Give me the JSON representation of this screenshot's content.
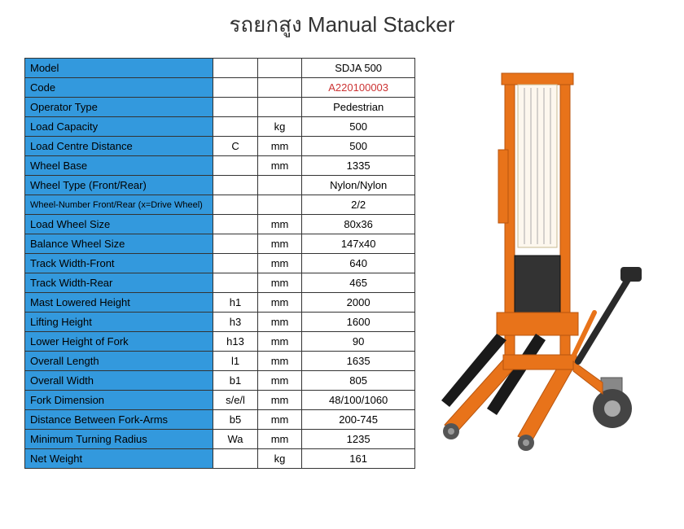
{
  "title": "รถยกสูง Manual Stacker",
  "table": {
    "label_bg": "#3399dd",
    "border_color": "#333333",
    "highlight_color": "#cc3333",
    "rows": [
      {
        "label": "Model",
        "symbol": "",
        "unit": "",
        "value": "SDJA 500",
        "highlight": false
      },
      {
        "label": "Code",
        "symbol": "",
        "unit": "",
        "value": "A220100003",
        "highlight": true
      },
      {
        "label": "Operator Type",
        "symbol": "",
        "unit": "",
        "value": "Pedestrian",
        "highlight": false
      },
      {
        "label": "Load Capacity",
        "symbol": "",
        "unit": "kg",
        "value": "500",
        "highlight": false
      },
      {
        "label": "Load Centre Distance",
        "symbol": "C",
        "unit": "mm",
        "value": "500",
        "highlight": false
      },
      {
        "label": "Wheel Base",
        "symbol": "",
        "unit": "mm",
        "value": "1335",
        "highlight": false
      },
      {
        "label": "Wheel Type (Front/Rear)",
        "symbol": "",
        "unit": "",
        "value": "Nylon/Nylon",
        "highlight": false
      },
      {
        "label": "Wheel-Number Front/Rear (x=Drive Wheel)",
        "symbol": "",
        "unit": "",
        "value": "2/2",
        "highlight": false,
        "small": true
      },
      {
        "label": "Load Wheel Size",
        "symbol": "",
        "unit": "mm",
        "value": "80x36",
        "highlight": false
      },
      {
        "label": "Balance Wheel Size",
        "symbol": "",
        "unit": "mm",
        "value": "147x40",
        "highlight": false
      },
      {
        "label": "Track Width-Front",
        "symbol": "",
        "unit": "mm",
        "value": "640",
        "highlight": false
      },
      {
        "label": "Track Width-Rear",
        "symbol": "",
        "unit": "mm",
        "value": "465",
        "highlight": false
      },
      {
        "label": "Mast Lowered Height",
        "symbol": "h1",
        "unit": "mm",
        "value": "2000",
        "highlight": false
      },
      {
        "label": "Lifting Height",
        "symbol": "h3",
        "unit": "mm",
        "value": "1600",
        "highlight": false
      },
      {
        "label": "Lower Height of Fork",
        "symbol": "h13",
        "unit": "mm",
        "value": "90",
        "highlight": false
      },
      {
        "label": "Overall Length",
        "symbol": "l1",
        "unit": "mm",
        "value": "1635",
        "highlight": false
      },
      {
        "label": "Overall Width",
        "symbol": "b1",
        "unit": "mm",
        "value": "805",
        "highlight": false
      },
      {
        "label": "Fork Dimension",
        "symbol": "s/e/l",
        "unit": "mm",
        "value": "48/100/1060",
        "highlight": false
      },
      {
        "label": "Distance Between Fork-Arms",
        "symbol": "b5",
        "unit": "mm",
        "value": "200-745",
        "highlight": false
      },
      {
        "label": "Minimum Turning Radius",
        "symbol": "Wa",
        "unit": "mm",
        "value": "1235",
        "highlight": false
      },
      {
        "label": "Net Weight",
        "symbol": "",
        "unit": "kg",
        "value": "161",
        "highlight": false
      }
    ]
  },
  "illustration": {
    "colors": {
      "frame": "#e8731a",
      "frame_dark": "#b8550f",
      "fork": "#1a1a1a",
      "wheel": "#555555",
      "wheel_hub": "#888888",
      "chain_bg": "#fdf7ee",
      "handle": "#2a2a2a"
    }
  }
}
